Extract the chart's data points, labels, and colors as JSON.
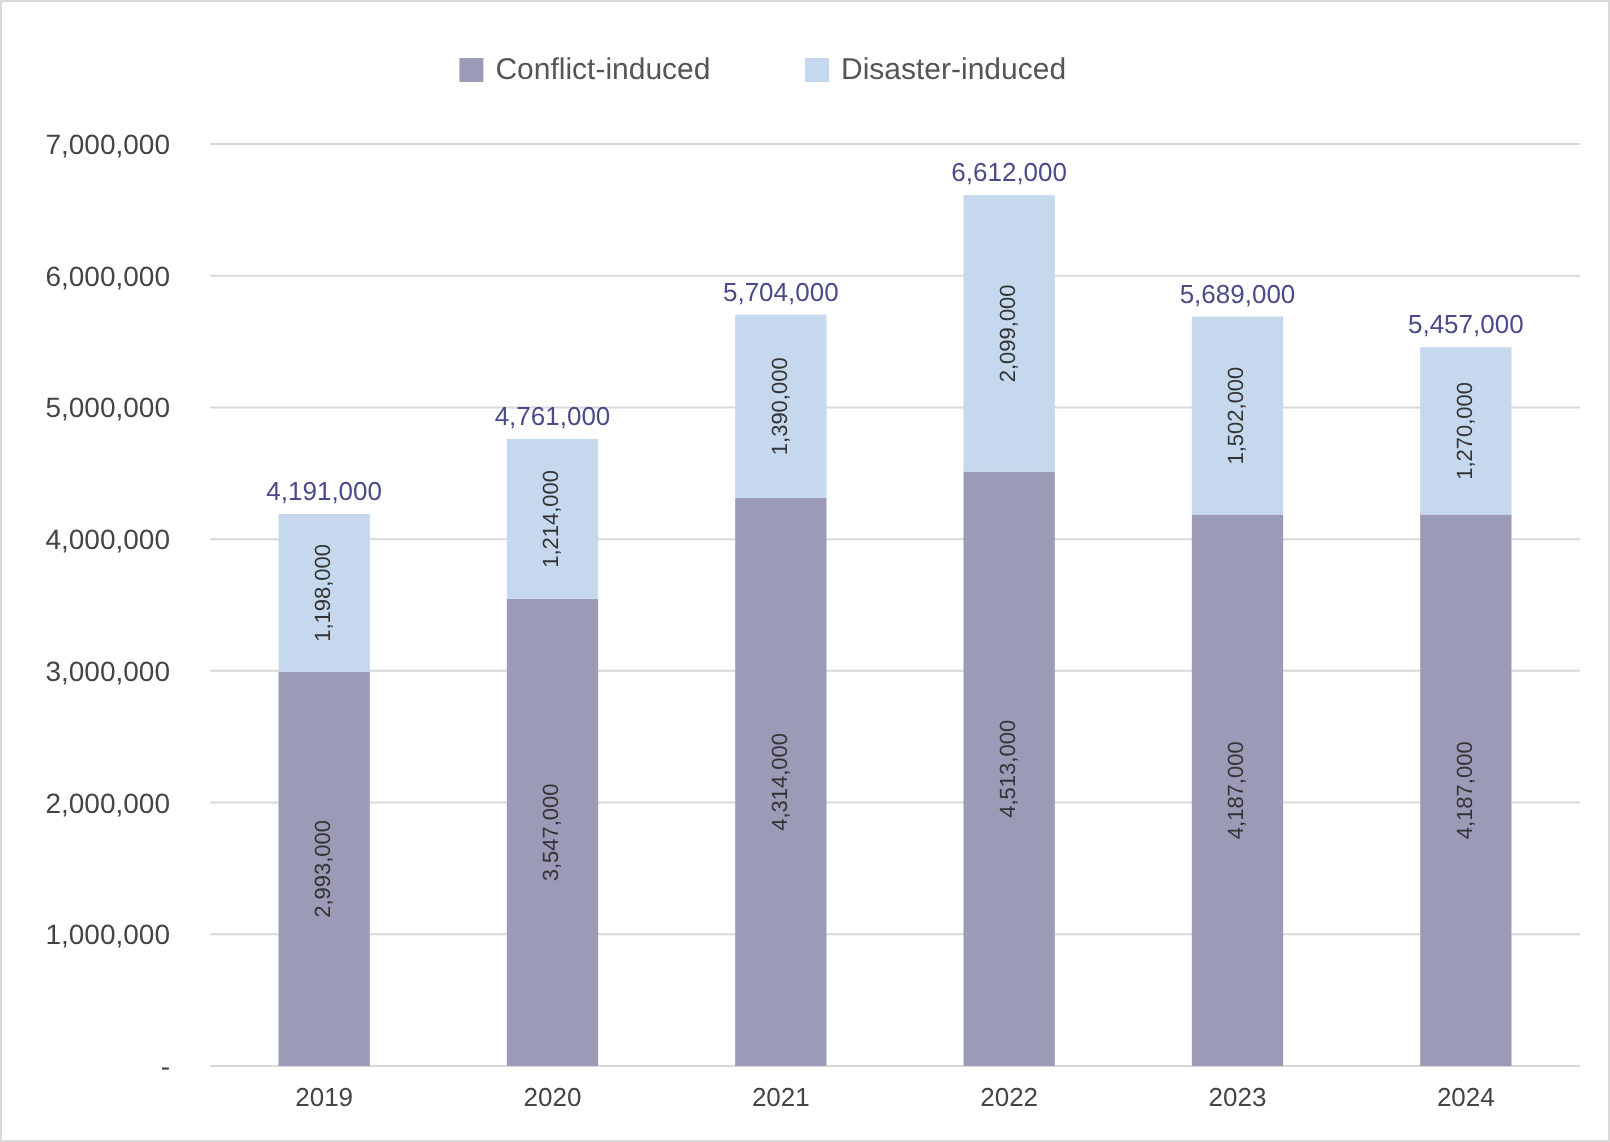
{
  "chart_data": {
    "type": "bar",
    "stacked": true,
    "categories": [
      "2019",
      "2020",
      "2021",
      "2022",
      "2023",
      "2024"
    ],
    "series": [
      {
        "name": "Conflict-induced",
        "color": "#9b9bb8",
        "values": [
          2993000,
          3547000,
          4314000,
          4513000,
          4187000,
          4187000
        ],
        "value_labels": [
          "2,993,000",
          "3,547,000",
          "4,314,000",
          "4,513,000",
          "4,187,000",
          "4,187,000"
        ]
      },
      {
        "name": "Disaster-induced",
        "color": "#c5d8ee",
        "values": [
          1198000,
          1214000,
          1390000,
          2099000,
          1502000,
          1270000
        ],
        "value_labels": [
          "1,198,000",
          "1,214,000",
          "1,390,000",
          "2,099,000",
          "1,502,000",
          "1,270,000"
        ]
      }
    ],
    "totals": [
      "4,191,000",
      "4,761,000",
      "5,704,000",
      "6,612,000",
      "5,689,000",
      "5,457,000"
    ],
    "ylim": [
      0,
      7000000
    ],
    "yticks": [
      {
        "value": 0,
        "label": "-"
      },
      {
        "value": 1000000,
        "label": "1,000,000"
      },
      {
        "value": 2000000,
        "label": "2,000,000"
      },
      {
        "value": 3000000,
        "label": "3,000,000"
      },
      {
        "value": 4000000,
        "label": "4,000,000"
      },
      {
        "value": 5000000,
        "label": "5,000,000"
      },
      {
        "value": 6000000,
        "label": "6,000,000"
      },
      {
        "value": 7000000,
        "label": "7,000,000"
      }
    ],
    "grid": "y",
    "legend": "top"
  }
}
